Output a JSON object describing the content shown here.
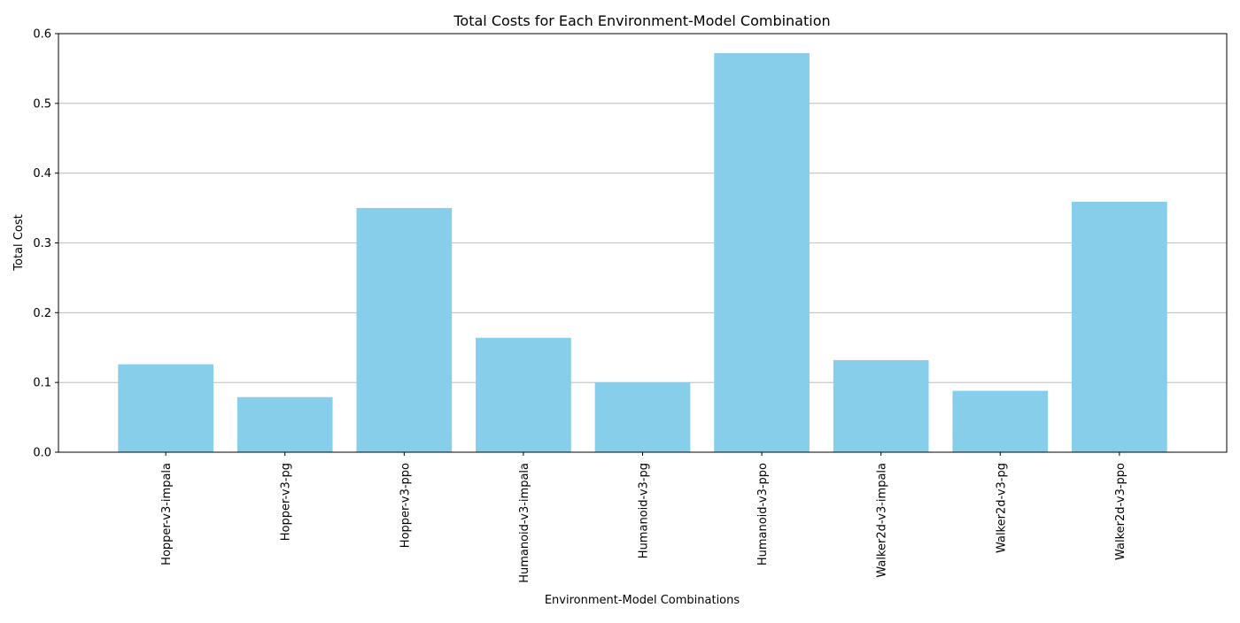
{
  "chart_data": {
    "type": "bar",
    "title": "Total Costs for Each Environment-Model Combination",
    "xlabel": "Environment-Model Combinations",
    "ylabel": "Total Cost",
    "categories": [
      "Hopper-v3-impala",
      "Hopper-v3-pg",
      "Hopper-v3-ppo",
      "Humanoid-v3-impala",
      "Humanoid-v3-pg",
      "Humanoid-v3-ppo",
      "Walker2d-v3-impala",
      "Walker2d-v3-pg",
      "Walker2d-v3-ppo"
    ],
    "values": [
      0.126,
      0.079,
      0.35,
      0.164,
      0.1,
      0.572,
      0.132,
      0.088,
      0.359
    ],
    "ylim": [
      0,
      0.6
    ],
    "yticks": [
      "0.0",
      "0.1",
      "0.2",
      "0.3",
      "0.4",
      "0.5",
      "0.6"
    ],
    "grid": "y-axis horizontal lines",
    "colors": {
      "bar": "#87ceeb",
      "grid": "#b0b0b0",
      "axis": "#000000"
    }
  }
}
